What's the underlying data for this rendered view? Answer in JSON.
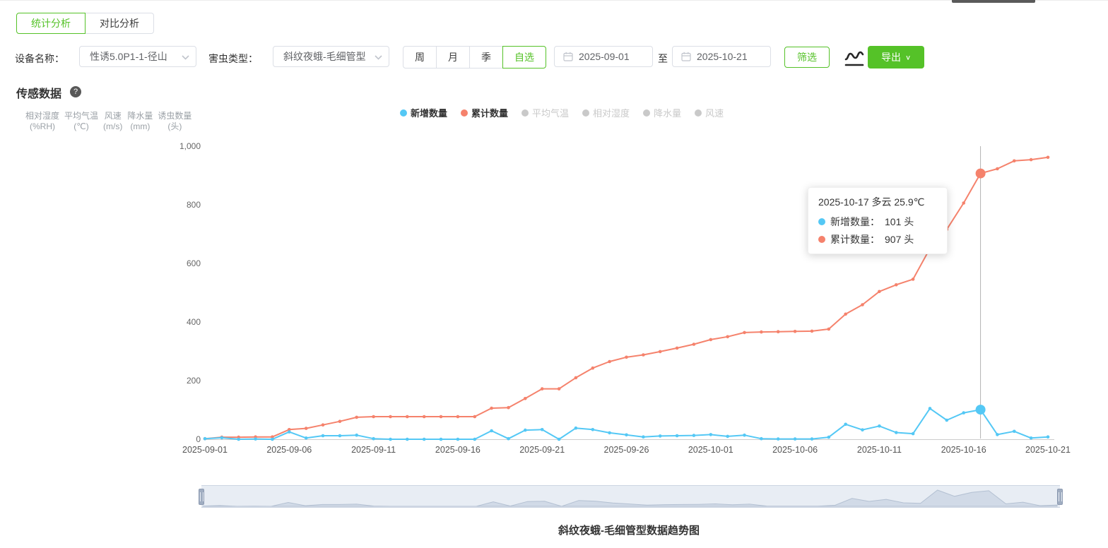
{
  "tabs": [
    {
      "label": "统计分析",
      "active": true
    },
    {
      "label": "对比分析",
      "active": false
    }
  ],
  "filters": {
    "device_label": "设备名称：",
    "device_value": "性诱5.0P1-1-径山",
    "pest_label": "害虫类型：",
    "pest_value": "斜纹夜蛾-毛细管型",
    "period_options": [
      "周",
      "月",
      "季",
      "自选"
    ],
    "period_active": "自选",
    "date_start": "2025-09-01",
    "date_to_label": "至",
    "date_end": "2025-10-21",
    "filter_button": "筛选",
    "export_button": "导出",
    "chevron_glyph": "∨"
  },
  "section": {
    "title": "传感数据",
    "help_glyph": "?"
  },
  "sensor_axes": [
    {
      "name": "相对湿度",
      "unit": "(%RH)"
    },
    {
      "name": "平均气温",
      "unit": "(℃)"
    },
    {
      "name": "风速",
      "unit": "(m/s)"
    },
    {
      "name": "降水量",
      "unit": "(mm)"
    },
    {
      "name": "诱虫数量",
      "unit": "(头)"
    }
  ],
  "legend": {
    "items": [
      {
        "label": "新增数量",
        "color": "#54c8f5",
        "active": true
      },
      {
        "label": "累计数量",
        "color": "#f5826c",
        "active": true
      },
      {
        "label": "平均气温",
        "color": "#c9c9c9",
        "active": false
      },
      {
        "label": "相对湿度",
        "color": "#c9c9c9",
        "active": false
      },
      {
        "label": "降水量",
        "color": "#c9c9c9",
        "active": false
      },
      {
        "label": "风速",
        "color": "#c9c9c9",
        "active": false
      }
    ]
  },
  "tooltip": {
    "header": "2025-10-17 多云 25.9℃",
    "rows": [
      {
        "label": "新增数量：",
        "value": "101 头",
        "color": "#54c8f5"
      },
      {
        "label": "累计数量：",
        "value": "907 头",
        "color": "#f5826c"
      }
    ]
  },
  "chart_title": "斜纹夜蛾-毛细管型数据趋势图",
  "chart_data": {
    "type": "line",
    "title": "斜纹夜蛾-毛细管型数据趋势图",
    "x": [
      "2025-09-01",
      "2025-09-02",
      "2025-09-03",
      "2025-09-04",
      "2025-09-05",
      "2025-09-06",
      "2025-09-07",
      "2025-09-08",
      "2025-09-09",
      "2025-09-10",
      "2025-09-11",
      "2025-09-12",
      "2025-09-13",
      "2025-09-14",
      "2025-09-15",
      "2025-09-16",
      "2025-09-17",
      "2025-09-18",
      "2025-09-19",
      "2025-09-20",
      "2025-09-21",
      "2025-09-22",
      "2025-09-23",
      "2025-09-24",
      "2025-09-25",
      "2025-09-26",
      "2025-09-27",
      "2025-09-28",
      "2025-09-29",
      "2025-09-30",
      "2025-10-01",
      "2025-10-02",
      "2025-10-03",
      "2025-10-04",
      "2025-10-05",
      "2025-10-06",
      "2025-10-07",
      "2025-10-08",
      "2025-10-09",
      "2025-10-10",
      "2025-10-11",
      "2025-10-12",
      "2025-10-13",
      "2025-10-14",
      "2025-10-15",
      "2025-10-16",
      "2025-10-17",
      "2025-10-18",
      "2025-10-19",
      "2025-10-20",
      "2025-10-21"
    ],
    "x_tick_labels": [
      "2025-09-01",
      "2025-09-06",
      "2025-09-11",
      "2025-09-16",
      "2025-09-21",
      "2025-09-26",
      "2025-10-01",
      "2025-10-06",
      "2025-10-11",
      "2025-10-16",
      "2025-10-21"
    ],
    "y_ticks": [
      "0",
      "200",
      "400",
      "600",
      "800",
      "1,000"
    ],
    "ylim": [
      0,
      1000
    ],
    "grid": false,
    "legend_position": "top",
    "series": [
      {
        "name": "新增数量",
        "color": "#54c8f5",
        "values": [
          2,
          5,
          0,
          1,
          0,
          25,
          4,
          12,
          12,
          14,
          2,
          0,
          0,
          0,
          0,
          0,
          0,
          29,
          2,
          31,
          33,
          0,
          38,
          33,
          22,
          15,
          8,
          11,
          12,
          13,
          16,
          10,
          14,
          2,
          1,
          1,
          1,
          7,
          51,
          32,
          45,
          23,
          19,
          105,
          65,
          90,
          101,
          16,
          27,
          4,
          8
        ]
      },
      {
        "name": "累计数量",
        "color": "#f5826c",
        "values": [
          2,
          7,
          7,
          8,
          8,
          33,
          37,
          49,
          61,
          75,
          77,
          77,
          77,
          77,
          77,
          77,
          77,
          106,
          108,
          139,
          172,
          172,
          210,
          243,
          265,
          280,
          288,
          299,
          311,
          324,
          340,
          350,
          364,
          366,
          367,
          368,
          369,
          376,
          427,
          459,
          504,
          527,
          546,
          651,
          716,
          806,
          907,
          923,
          950,
          954,
          962
        ]
      }
    ],
    "highlight": {
      "date": "2025-10-17",
      "index": 46,
      "crosshair": true
    }
  }
}
